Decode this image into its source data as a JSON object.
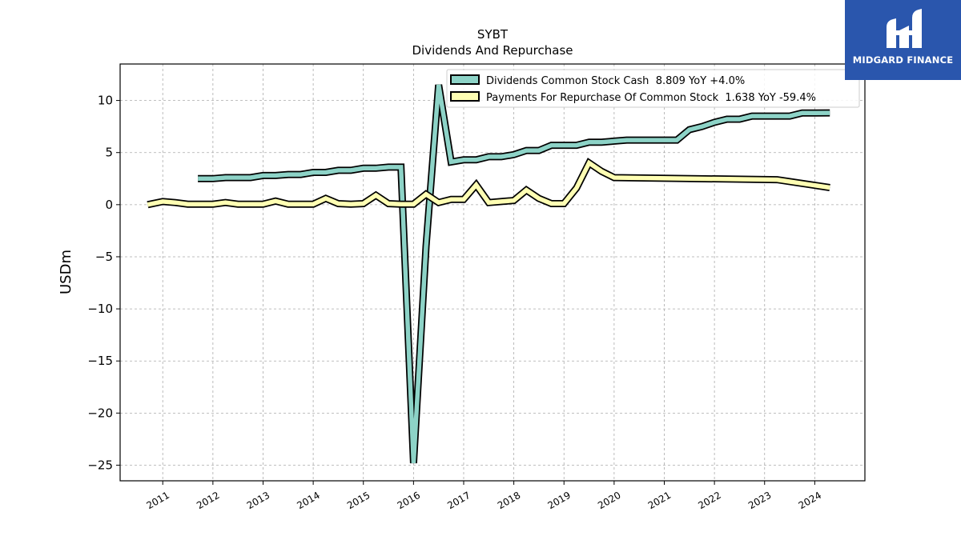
{
  "logo": {
    "text": "MIDGARD FINANCE"
  },
  "chart_data": {
    "type": "line",
    "title": "SYBT",
    "subtitle": "Dividends And Repurchase",
    "xlabel": "",
    "ylabel": "USDm",
    "xlim": [
      2010.15,
      2025.0
    ],
    "ylim": [
      -26.5,
      13.5
    ],
    "yticks": [
      10,
      5,
      0,
      -5,
      -10,
      -15,
      -20,
      -25
    ],
    "ytick_labels": [
      "10",
      "5",
      "0",
      "−5",
      "−10",
      "−15",
      "−20",
      "−25"
    ],
    "xticks": [
      2011,
      2012,
      2013,
      2014,
      2015,
      2016,
      2017,
      2018,
      2019,
      2020,
      2021,
      2022,
      2023,
      2024
    ],
    "xtick_labels": [
      "2011",
      "2012",
      "2013",
      "2014",
      "2015",
      "2016",
      "2017",
      "2018",
      "2019",
      "2020",
      "2021",
      "2022",
      "2023",
      "2024"
    ],
    "grid": true,
    "legend_position": "top-right",
    "legend": [
      "Dividends Common Stock Cash  8.809 YoY +4.0%",
      "Payments For Repurchase Of Common Stock  1.638 YoY -59.4%"
    ],
    "series": [
      {
        "name": "Dividends Common Stock Cash",
        "color": "#8dd3c7",
        "points": [
          [
            2011.7,
            2.5
          ],
          [
            2012.0,
            2.5
          ],
          [
            2012.25,
            2.6
          ],
          [
            2012.5,
            2.6
          ],
          [
            2012.75,
            2.6
          ],
          [
            2013.0,
            2.8
          ],
          [
            2013.25,
            2.8
          ],
          [
            2013.5,
            2.9
          ],
          [
            2013.75,
            2.9
          ],
          [
            2014.0,
            3.1
          ],
          [
            2014.25,
            3.1
          ],
          [
            2014.5,
            3.3
          ],
          [
            2014.75,
            3.3
          ],
          [
            2015.0,
            3.5
          ],
          [
            2015.25,
            3.5
          ],
          [
            2015.5,
            3.6
          ],
          [
            2015.75,
            3.6
          ],
          [
            2016.0,
            -24.8
          ],
          [
            2016.25,
            -4.0
          ],
          [
            2016.5,
            11.5
          ],
          [
            2016.75,
            4.1
          ],
          [
            2017.0,
            4.3
          ],
          [
            2017.25,
            4.3
          ],
          [
            2017.5,
            4.6
          ],
          [
            2017.75,
            4.6
          ],
          [
            2018.0,
            4.8
          ],
          [
            2018.25,
            5.2
          ],
          [
            2018.5,
            5.2
          ],
          [
            2018.75,
            5.7
          ],
          [
            2019.0,
            5.7
          ],
          [
            2019.25,
            5.7
          ],
          [
            2019.5,
            6.0
          ],
          [
            2019.75,
            6.0
          ],
          [
            2020.0,
            6.1
          ],
          [
            2020.25,
            6.2
          ],
          [
            2020.5,
            6.2
          ],
          [
            2020.75,
            6.2
          ],
          [
            2021.0,
            6.2
          ],
          [
            2021.25,
            6.2
          ],
          [
            2021.5,
            7.2
          ],
          [
            2021.75,
            7.5
          ],
          [
            2022.0,
            7.9
          ],
          [
            2022.25,
            8.2
          ],
          [
            2022.5,
            8.2
          ],
          [
            2022.75,
            8.5
          ],
          [
            2023.0,
            8.5
          ],
          [
            2023.25,
            8.5
          ],
          [
            2023.5,
            8.5
          ],
          [
            2023.75,
            8.8
          ],
          [
            2024.0,
            8.8
          ],
          [
            2024.3,
            8.809
          ]
        ]
      },
      {
        "name": "Payments For Repurchase Of Common Stock",
        "color": "#ffffb3",
        "points": [
          [
            2010.7,
            0.0
          ],
          [
            2011.0,
            0.3
          ],
          [
            2011.25,
            0.2
          ],
          [
            2011.5,
            0.05
          ],
          [
            2011.75,
            0.05
          ],
          [
            2012.0,
            0.05
          ],
          [
            2012.25,
            0.2
          ],
          [
            2012.5,
            0.05
          ],
          [
            2012.75,
            0.05
          ],
          [
            2013.0,
            0.05
          ],
          [
            2013.25,
            0.35
          ],
          [
            2013.5,
            0.05
          ],
          [
            2013.75,
            0.05
          ],
          [
            2014.0,
            0.05
          ],
          [
            2014.25,
            0.6
          ],
          [
            2014.5,
            0.1
          ],
          [
            2014.75,
            0.05
          ],
          [
            2015.0,
            0.1
          ],
          [
            2015.25,
            0.9
          ],
          [
            2015.5,
            0.1
          ],
          [
            2015.75,
            0.05
          ],
          [
            2016.0,
            0.05
          ],
          [
            2016.25,
            1.0
          ],
          [
            2016.5,
            0.2
          ],
          [
            2016.75,
            0.5
          ],
          [
            2017.0,
            0.5
          ],
          [
            2017.25,
            1.9
          ],
          [
            2017.5,
            0.2
          ],
          [
            2017.75,
            0.3
          ],
          [
            2018.0,
            0.4
          ],
          [
            2018.25,
            1.4
          ],
          [
            2018.5,
            0.6
          ],
          [
            2018.75,
            0.1
          ],
          [
            2019.0,
            0.1
          ],
          [
            2019.25,
            1.6
          ],
          [
            2019.5,
            4.0
          ],
          [
            2019.75,
            3.2
          ],
          [
            2020.0,
            2.6
          ],
          [
            2023.25,
            2.4
          ],
          [
            2024.3,
            1.638
          ]
        ]
      }
    ]
  }
}
